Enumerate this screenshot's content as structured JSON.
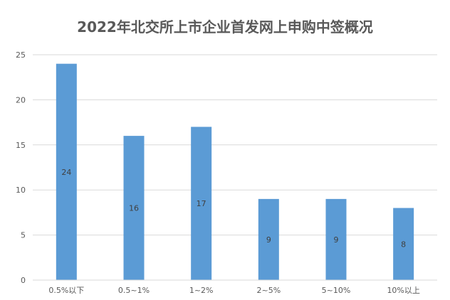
{
  "chart_data": {
    "type": "bar",
    "title": "2022年北交所上市企业首发网上申购中签概况",
    "categories": [
      "0.5%以下",
      "0.5~1%",
      "1~2%",
      "2~5%",
      "5~10%",
      "10%以上"
    ],
    "values": [
      24,
      16,
      17,
      9,
      9,
      8
    ],
    "data_labels": [
      "24",
      "16",
      "17",
      "9",
      "9",
      "8"
    ],
    "y_ticks": [
      "0",
      "5",
      "10",
      "15",
      "20",
      "25"
    ],
    "ylim": [
      0,
      25
    ],
    "xlabel": "",
    "ylabel": "",
    "grid": true,
    "legend": "none",
    "bar_color": "#5B9BD5",
    "grid_color": "#D9D9D9"
  }
}
